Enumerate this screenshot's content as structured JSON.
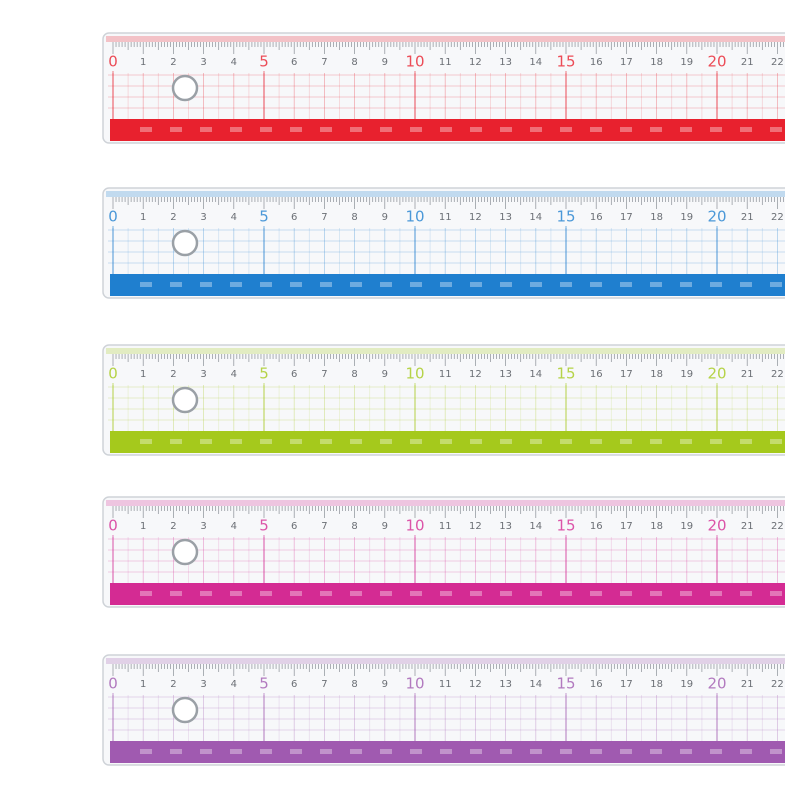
{
  "scale": [
    0,
    1,
    2,
    3,
    4,
    5,
    6,
    7,
    8,
    9,
    10,
    11,
    12,
    13,
    14,
    15,
    16,
    17,
    18,
    19,
    20,
    21,
    22
  ],
  "rulers": [
    {
      "color": "#e8212e"
    },
    {
      "color": "#1f7fcf"
    },
    {
      "color": "#a5c91c"
    },
    {
      "color": "#d42b93"
    },
    {
      "color": "#a05ab0"
    }
  ]
}
